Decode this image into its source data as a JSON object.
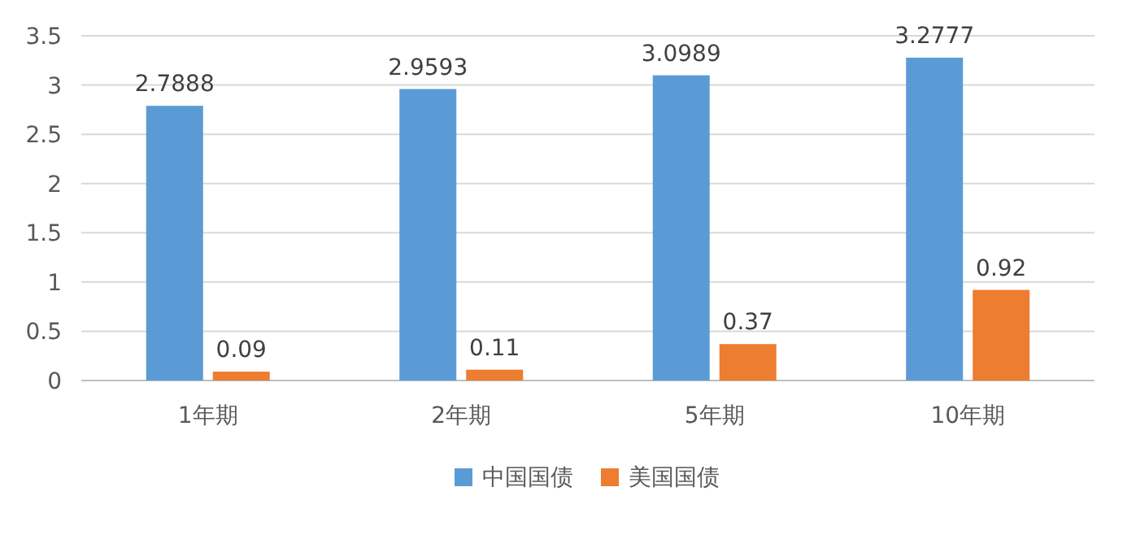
{
  "chart_data": {
    "type": "bar",
    "categories": [
      "1年期",
      "2年期",
      "5年期",
      "10年期"
    ],
    "series": [
      {
        "name": "中国国债",
        "color": "#5b9bd5",
        "values": [
          2.7888,
          2.9593,
          3.0989,
          3.2777
        ]
      },
      {
        "name": "美国国债",
        "color": "#ed7d31",
        "values": [
          0.09,
          0.11,
          0.37,
          0.92
        ]
      }
    ],
    "ylim": [
      0,
      3.5
    ],
    "yticks": [
      0,
      0.5,
      1,
      1.5,
      2,
      2.5,
      3,
      3.5
    ],
    "grid": "y",
    "legend": "bottom",
    "data_labels": true
  }
}
